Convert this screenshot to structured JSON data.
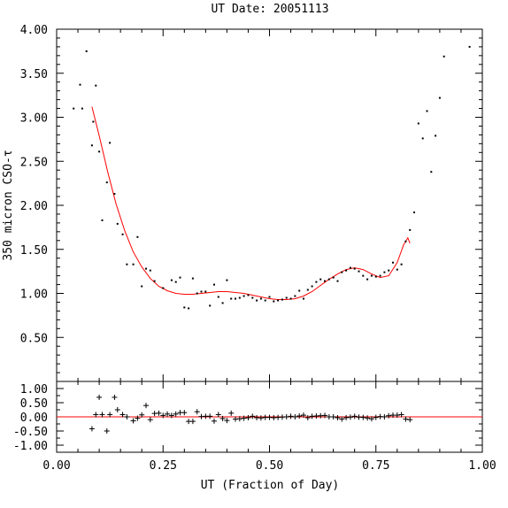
{
  "chart_data": [
    {
      "type": "scatter",
      "title": "UT Date: 20051113",
      "xlabel": "UT (Fraction of Day)",
      "ylabel": "350 micron CSO-τ",
      "xlim": [
        0.0,
        1.0
      ],
      "ylim": [
        0.0,
        4.0
      ],
      "x_ticks": [
        "0.00",
        "0.25",
        "0.50",
        "0.75",
        "1.00"
      ],
      "y_ticks": [
        "0.50",
        "1.00",
        "1.50",
        "2.00",
        "2.50",
        "3.00",
        "3.50",
        "4.00"
      ],
      "grid": false,
      "colors": {
        "points": "#000000",
        "fit": "#ff0000"
      },
      "series": [
        {
          "kind": "points",
          "x": [
            0.04,
            0.055,
            0.06,
            0.07,
            0.083,
            0.086,
            0.092,
            0.1,
            0.107,
            0.118,
            0.125,
            0.136,
            0.143,
            0.155,
            0.165,
            0.18,
            0.19,
            0.2,
            0.21,
            0.22,
            0.23,
            0.25,
            0.27,
            0.28,
            0.29,
            0.3,
            0.31,
            0.32,
            0.33,
            0.34,
            0.35,
            0.36,
            0.37,
            0.38,
            0.39,
            0.4,
            0.41,
            0.42,
            0.43,
            0.44,
            0.45,
            0.46,
            0.47,
            0.48,
            0.49,
            0.5,
            0.51,
            0.52,
            0.53,
            0.54,
            0.55,
            0.56,
            0.57,
            0.58,
            0.59,
            0.6,
            0.61,
            0.62,
            0.63,
            0.64,
            0.65,
            0.66,
            0.67,
            0.68,
            0.69,
            0.7,
            0.71,
            0.72,
            0.73,
            0.74,
            0.75,
            0.76,
            0.77,
            0.78,
            0.79,
            0.8,
            0.81,
            0.82,
            0.83,
            0.84,
            0.85,
            0.86,
            0.87,
            0.88,
            0.89,
            0.9,
            0.91,
            0.97
          ],
          "y": [
            3.1,
            3.37,
            3.1,
            3.75,
            2.68,
            2.95,
            3.36,
            2.61,
            1.83,
            2.26,
            2.71,
            2.13,
            1.79,
            1.67,
            1.33,
            1.33,
            1.64,
            1.08,
            1.28,
            1.26,
            1.14,
            1.06,
            1.15,
            1.13,
            1.18,
            0.84,
            0.83,
            1.17,
            1.0,
            1.02,
            1.02,
            0.86,
            1.1,
            0.96,
            0.89,
            1.15,
            0.94,
            0.94,
            0.95,
            0.97,
            0.98,
            0.95,
            0.92,
            0.94,
            0.92,
            0.96,
            0.91,
            0.92,
            0.93,
            0.95,
            0.94,
            0.97,
            1.03,
            0.94,
            1.04,
            1.08,
            1.13,
            1.16,
            1.14,
            1.16,
            1.18,
            1.14,
            1.24,
            1.26,
            1.29,
            1.28,
            1.25,
            1.2,
            1.16,
            1.2,
            1.19,
            1.2,
            1.24,
            1.26,
            1.35,
            1.27,
            1.33,
            1.59,
            1.72,
            1.92,
            2.93,
            2.76,
            3.07,
            2.38,
            2.79,
            3.22,
            3.69,
            3.8
          ]
        },
        {
          "kind": "fit",
          "x": [
            0.083,
            0.1,
            0.12,
            0.14,
            0.16,
            0.18,
            0.2,
            0.22,
            0.24,
            0.26,
            0.28,
            0.3,
            0.32,
            0.34,
            0.36,
            0.38,
            0.4,
            0.42,
            0.44,
            0.46,
            0.48,
            0.5,
            0.52,
            0.54,
            0.56,
            0.58,
            0.6,
            0.62,
            0.64,
            0.66,
            0.68,
            0.7,
            0.72,
            0.74,
            0.76,
            0.78,
            0.8,
            0.815,
            0.825,
            0.83
          ],
          "y": [
            3.12,
            2.79,
            2.38,
            2.01,
            1.71,
            1.47,
            1.3,
            1.17,
            1.08,
            1.03,
            1.0,
            0.99,
            0.99,
            1.0,
            1.01,
            1.02,
            1.02,
            1.01,
            1.0,
            0.98,
            0.96,
            0.94,
            0.93,
            0.93,
            0.94,
            0.97,
            1.02,
            1.09,
            1.16,
            1.22,
            1.27,
            1.29,
            1.27,
            1.22,
            1.18,
            1.2,
            1.35,
            1.55,
            1.63,
            1.57
          ]
        }
      ]
    },
    {
      "type": "scatter",
      "title": "",
      "xlabel": "UT (Fraction of Day)",
      "ylabel": "",
      "xlim": [
        0.0,
        1.0
      ],
      "ylim": [
        -1.25,
        1.25
      ],
      "x_ticks": [
        "0.00",
        "0.25",
        "0.50",
        "0.75",
        "1.00"
      ],
      "y_ticks": [
        "1.00",
        "0.50",
        "0.00",
        "-0.50",
        "-1.00"
      ],
      "grid": false,
      "zero_line_color": "#ff0000",
      "series": [
        {
          "kind": "residuals",
          "x": [
            0.083,
            0.092,
            0.1,
            0.107,
            0.118,
            0.125,
            0.136,
            0.143,
            0.155,
            0.165,
            0.18,
            0.19,
            0.2,
            0.21,
            0.22,
            0.23,
            0.24,
            0.25,
            0.26,
            0.27,
            0.28,
            0.29,
            0.3,
            0.31,
            0.32,
            0.33,
            0.34,
            0.35,
            0.36,
            0.37,
            0.38,
            0.39,
            0.4,
            0.41,
            0.42,
            0.43,
            0.44,
            0.45,
            0.46,
            0.47,
            0.48,
            0.49,
            0.5,
            0.51,
            0.52,
            0.53,
            0.54,
            0.55,
            0.56,
            0.57,
            0.58,
            0.59,
            0.6,
            0.61,
            0.62,
            0.63,
            0.64,
            0.65,
            0.66,
            0.67,
            0.68,
            0.69,
            0.7,
            0.71,
            0.72,
            0.73,
            0.74,
            0.75,
            0.76,
            0.77,
            0.78,
            0.79,
            0.8,
            0.81,
            0.82,
            0.83
          ],
          "y": [
            -0.42,
            0.08,
            0.69,
            0.08,
            -0.5,
            0.08,
            0.69,
            0.25,
            0.08,
            0.0,
            -0.14,
            -0.05,
            0.07,
            0.4,
            -0.1,
            0.12,
            0.13,
            0.05,
            0.1,
            0.05,
            0.1,
            0.15,
            0.15,
            -0.16,
            -0.16,
            0.18,
            0.01,
            0.02,
            0.02,
            -0.15,
            0.08,
            -0.06,
            -0.13,
            0.13,
            -0.08,
            -0.07,
            -0.05,
            -0.03,
            0.02,
            -0.03,
            -0.04,
            -0.02,
            -0.02,
            -0.03,
            -0.02,
            -0.01,
            0.0,
            0.02,
            0.0,
            0.03,
            0.06,
            -0.03,
            0.02,
            0.03,
            0.04,
            0.05,
            0.0,
            0.0,
            -0.03,
            -0.08,
            -0.03,
            -0.01,
            0.02,
            -0.01,
            -0.02,
            -0.04,
            -0.07,
            -0.02,
            0.01,
            0.0,
            0.04,
            0.06,
            0.06,
            0.08,
            -0.08,
            -0.1
          ]
        }
      ]
    }
  ]
}
